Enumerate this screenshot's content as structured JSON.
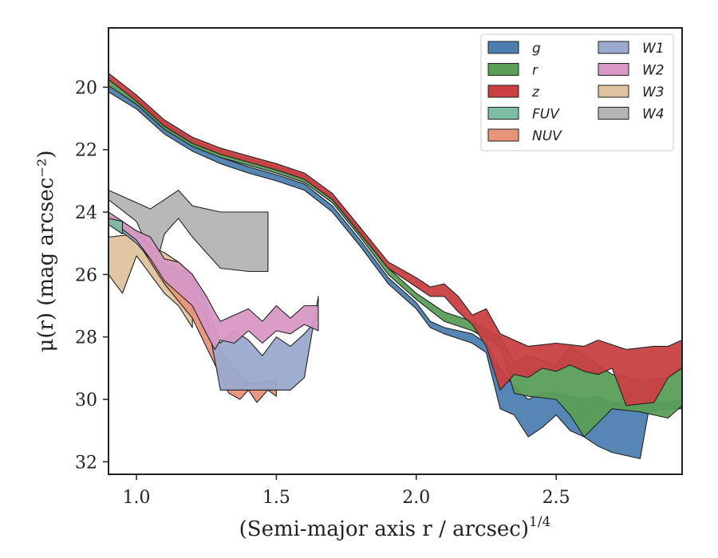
{
  "chart_data": {
    "type": "area",
    "xlabel": "(Semi-major axis r / arcsec)",
    "xlabel_superscript": "1/4",
    "ylabel": "μ(r) (mag arcsec⁻²)",
    "xlim": [
      0.9,
      2.95
    ],
    "ylim": [
      32.4,
      18.1
    ],
    "y_inverted": true,
    "x_ticks": [
      "1.0",
      "1.5",
      "2.0",
      "2.5"
    ],
    "x_tick_values": [
      1.0,
      1.5,
      2.0,
      2.5
    ],
    "y_ticks": [
      "20",
      "22",
      "24",
      "26",
      "28",
      "30",
      "32"
    ],
    "y_tick_values": [
      20,
      22,
      24,
      26,
      28,
      30,
      32
    ],
    "grid": false,
    "legend_position": "top-right",
    "series": [
      {
        "name": "g",
        "color": "#4c7fb0",
        "upper": [
          [
            0.9,
            19.95
          ],
          [
            1.0,
            20.5
          ],
          [
            1.1,
            21.3
          ],
          [
            1.2,
            21.85
          ],
          [
            1.3,
            22.25
          ],
          [
            1.4,
            22.55
          ],
          [
            1.5,
            22.8
          ],
          [
            1.6,
            23.1
          ],
          [
            1.7,
            23.8
          ],
          [
            1.8,
            24.9
          ],
          [
            1.9,
            26.1
          ],
          [
            2.0,
            26.9
          ],
          [
            2.05,
            27.5
          ],
          [
            2.1,
            27.7
          ],
          [
            2.2,
            27.9
          ],
          [
            2.25,
            28.2
          ],
          [
            2.3,
            29.0
          ],
          [
            2.35,
            29.6
          ],
          [
            2.4,
            30.0
          ],
          [
            2.45,
            29.8
          ],
          [
            2.5,
            29.8
          ],
          [
            2.55,
            29.9
          ],
          [
            2.6,
            30.0
          ],
          [
            2.65,
            29.9
          ],
          [
            2.7,
            30.1
          ],
          [
            2.8,
            30.2
          ],
          [
            2.9,
            30.1
          ],
          [
            2.95,
            30.0
          ]
        ],
        "lower": [
          [
            0.9,
            20.15
          ],
          [
            1.0,
            20.7
          ],
          [
            1.1,
            21.5
          ],
          [
            1.2,
            22.05
          ],
          [
            1.3,
            22.45
          ],
          [
            1.4,
            22.75
          ],
          [
            1.5,
            23.0
          ],
          [
            1.6,
            23.3
          ],
          [
            1.7,
            24.0
          ],
          [
            1.8,
            25.1
          ],
          [
            1.9,
            26.3
          ],
          [
            2.0,
            27.1
          ],
          [
            2.05,
            27.7
          ],
          [
            2.1,
            27.9
          ],
          [
            2.2,
            28.2
          ],
          [
            2.25,
            28.5
          ],
          [
            2.3,
            30.3
          ],
          [
            2.35,
            30.5
          ],
          [
            2.4,
            31.2
          ],
          [
            2.45,
            30.9
          ],
          [
            2.5,
            30.5
          ],
          [
            2.55,
            31.0
          ],
          [
            2.6,
            31.2
          ],
          [
            2.65,
            31.5
          ],
          [
            2.7,
            31.7
          ],
          [
            2.8,
            31.9
          ],
          [
            2.83,
            30.4
          ],
          [
            2.9,
            30.3
          ],
          [
            2.95,
            30.3
          ]
        ]
      },
      {
        "name": "r",
        "color": "#5a9e58",
        "upper": [
          [
            0.9,
            19.75
          ],
          [
            1.0,
            20.35
          ],
          [
            1.1,
            21.15
          ],
          [
            1.2,
            21.7
          ],
          [
            1.3,
            22.05
          ],
          [
            1.4,
            22.3
          ],
          [
            1.5,
            22.55
          ],
          [
            1.6,
            22.85
          ],
          [
            1.7,
            23.5
          ],
          [
            1.8,
            24.6
          ],
          [
            1.9,
            25.8
          ],
          [
            2.0,
            26.6
          ],
          [
            2.1,
            27.2
          ],
          [
            2.2,
            27.5
          ],
          [
            2.3,
            28.0
          ],
          [
            2.35,
            28.8
          ],
          [
            2.4,
            28.6
          ],
          [
            2.5,
            28.9
          ],
          [
            2.55,
            28.3
          ],
          [
            2.6,
            28.6
          ],
          [
            2.7,
            29.2
          ],
          [
            2.8,
            29.4
          ],
          [
            2.9,
            29.3
          ],
          [
            2.95,
            28.9
          ]
        ],
        "lower": [
          [
            0.9,
            19.95
          ],
          [
            1.0,
            20.55
          ],
          [
            1.1,
            21.35
          ],
          [
            1.2,
            21.9
          ],
          [
            1.3,
            22.25
          ],
          [
            1.4,
            22.5
          ],
          [
            1.5,
            22.75
          ],
          [
            1.6,
            23.05
          ],
          [
            1.7,
            23.7
          ],
          [
            1.8,
            24.8
          ],
          [
            1.9,
            26.0
          ],
          [
            2.0,
            26.8
          ],
          [
            2.1,
            27.5
          ],
          [
            2.2,
            27.8
          ],
          [
            2.3,
            28.3
          ],
          [
            2.35,
            29.8
          ],
          [
            2.4,
            29.9
          ],
          [
            2.5,
            30.0
          ],
          [
            2.55,
            30.5
          ],
          [
            2.6,
            31.2
          ],
          [
            2.7,
            30.3
          ],
          [
            2.8,
            30.4
          ],
          [
            2.9,
            30.6
          ],
          [
            2.95,
            30.2
          ]
        ]
      },
      {
        "name": "z",
        "color": "#c84042",
        "upper": [
          [
            0.9,
            19.55
          ],
          [
            1.0,
            20.25
          ],
          [
            1.1,
            21.05
          ],
          [
            1.2,
            21.6
          ],
          [
            1.3,
            21.95
          ],
          [
            1.4,
            22.2
          ],
          [
            1.5,
            22.45
          ],
          [
            1.6,
            22.75
          ],
          [
            1.7,
            23.4
          ],
          [
            1.8,
            24.5
          ],
          [
            1.9,
            25.6
          ],
          [
            2.0,
            26.1
          ],
          [
            2.05,
            26.4
          ],
          [
            2.1,
            26.3
          ],
          [
            2.15,
            26.7
          ],
          [
            2.2,
            27.3
          ],
          [
            2.25,
            27.1
          ],
          [
            2.3,
            27.9
          ],
          [
            2.35,
            28.1
          ],
          [
            2.4,
            28.3
          ],
          [
            2.5,
            28.2
          ],
          [
            2.6,
            28.3
          ],
          [
            2.65,
            28.1
          ],
          [
            2.75,
            28.4
          ],
          [
            2.85,
            28.3
          ],
          [
            2.9,
            28.3
          ],
          [
            2.95,
            28.1
          ]
        ],
        "lower": [
          [
            0.9,
            19.75
          ],
          [
            1.0,
            20.45
          ],
          [
            1.1,
            21.25
          ],
          [
            1.2,
            21.8
          ],
          [
            1.3,
            22.15
          ],
          [
            1.4,
            22.4
          ],
          [
            1.5,
            22.65
          ],
          [
            1.6,
            22.95
          ],
          [
            1.7,
            23.6
          ],
          [
            1.8,
            24.7
          ],
          [
            1.9,
            25.8
          ],
          [
            2.0,
            26.4
          ],
          [
            2.05,
            26.7
          ],
          [
            2.1,
            26.7
          ],
          [
            2.15,
            27.2
          ],
          [
            2.2,
            27.6
          ],
          [
            2.25,
            28.3
          ],
          [
            2.3,
            29.7
          ],
          [
            2.35,
            29.2
          ],
          [
            2.4,
            29.3
          ],
          [
            2.45,
            29.0
          ],
          [
            2.5,
            29.1
          ],
          [
            2.55,
            28.9
          ],
          [
            2.6,
            29.1
          ],
          [
            2.65,
            29.2
          ],
          [
            2.7,
            29.0
          ],
          [
            2.75,
            30.2
          ],
          [
            2.85,
            30.1
          ],
          [
            2.9,
            29.3
          ],
          [
            2.95,
            29.0
          ]
        ]
      },
      {
        "name": "FUV",
        "color": "#7fbca4",
        "upper": [
          [
            0.9,
            24.2
          ],
          [
            0.95,
            24.3
          ]
        ],
        "lower": [
          [
            0.9,
            24.4
          ],
          [
            0.95,
            24.7
          ]
        ]
      },
      {
        "name": "NUV",
        "color": "#e8937a",
        "upper": [
          [
            0.9,
            24.1
          ],
          [
            1.0,
            24.6
          ],
          [
            1.1,
            25.9
          ],
          [
            1.2,
            26.4
          ],
          [
            1.3,
            28.5
          ],
          [
            1.4,
            29.5
          ],
          [
            1.5,
            29.4
          ]
        ],
        "lower": [
          [
            0.9,
            24.3
          ],
          [
            1.0,
            24.9
          ],
          [
            1.1,
            26.3
          ],
          [
            1.2,
            27.4
          ],
          [
            1.33,
            29.8
          ],
          [
            1.37,
            30.0
          ],
          [
            1.4,
            29.7
          ],
          [
            1.43,
            30.1
          ],
          [
            1.47,
            29.7
          ],
          [
            1.5,
            29.9
          ]
        ]
      },
      {
        "name": "W1",
        "color": "#9aa9cd",
        "upper": [
          [
            0.9,
            24.1
          ],
          [
            1.0,
            24.7
          ],
          [
            1.1,
            25.7
          ],
          [
            1.2,
            26.0
          ],
          [
            1.25,
            27.0
          ],
          [
            1.3,
            28.2
          ],
          [
            1.35,
            27.8
          ],
          [
            1.4,
            28.1
          ],
          [
            1.45,
            28.6
          ],
          [
            1.5,
            28.0
          ],
          [
            1.55,
            28.3
          ],
          [
            1.6,
            27.9
          ],
          [
            1.65,
            27.4
          ]
        ],
        "lower": [
          [
            0.9,
            24.3
          ],
          [
            1.0,
            25.0
          ],
          [
            1.1,
            26.0
          ],
          [
            1.2,
            26.6
          ],
          [
            1.25,
            27.3
          ],
          [
            1.3,
            29.7
          ],
          [
            1.4,
            29.7
          ],
          [
            1.5,
            29.7
          ],
          [
            1.55,
            29.7
          ],
          [
            1.6,
            29.3
          ],
          [
            1.65,
            26.7
          ]
        ]
      },
      {
        "name": "W2",
        "color": "#d898c4",
        "upper": [
          [
            0.9,
            24.0
          ],
          [
            1.0,
            24.6
          ],
          [
            1.05,
            24.8
          ],
          [
            1.1,
            25.5
          ],
          [
            1.15,
            25.6
          ],
          [
            1.2,
            26.0
          ],
          [
            1.25,
            26.7
          ],
          [
            1.28,
            27.2
          ],
          [
            1.3,
            27.5
          ],
          [
            1.35,
            27.3
          ],
          [
            1.4,
            27.1
          ],
          [
            1.45,
            27.5
          ],
          [
            1.5,
            27.0
          ],
          [
            1.55,
            27.4
          ],
          [
            1.6,
            27.0
          ],
          [
            1.65,
            27.0
          ]
        ],
        "lower": [
          [
            0.9,
            24.2
          ],
          [
            1.0,
            24.9
          ],
          [
            1.05,
            25.5
          ],
          [
            1.1,
            26.2
          ],
          [
            1.15,
            26.6
          ],
          [
            1.2,
            27.0
          ],
          [
            1.25,
            27.9
          ],
          [
            1.28,
            28.4
          ],
          [
            1.3,
            28.1
          ],
          [
            1.35,
            28.2
          ],
          [
            1.4,
            27.8
          ],
          [
            1.45,
            28.2
          ],
          [
            1.5,
            27.8
          ],
          [
            1.55,
            27.9
          ],
          [
            1.6,
            27.6
          ],
          [
            1.65,
            27.8
          ]
        ]
      },
      {
        "name": "W3",
        "color": "#dfc39f",
        "upper": [
          [
            0.9,
            24.8
          ],
          [
            1.0,
            24.7
          ],
          [
            1.05,
            25.1
          ],
          [
            1.1,
            25.3
          ],
          [
            1.15,
            25.6
          ],
          [
            1.2,
            26.0
          ]
        ],
        "lower": [
          [
            0.9,
            26.0
          ],
          [
            0.95,
            26.6
          ],
          [
            1.0,
            25.4
          ],
          [
            1.05,
            26.0
          ],
          [
            1.1,
            26.6
          ],
          [
            1.15,
            27.0
          ],
          [
            1.2,
            27.7
          ]
        ]
      },
      {
        "name": "W4",
        "color": "#b4b4b4",
        "upper": [
          [
            0.9,
            23.3
          ],
          [
            1.0,
            23.7
          ],
          [
            1.05,
            23.9
          ],
          [
            1.1,
            23.6
          ],
          [
            1.15,
            23.3
          ],
          [
            1.2,
            23.8
          ],
          [
            1.3,
            24.0
          ],
          [
            1.4,
            24.0
          ],
          [
            1.47,
            24.0
          ]
        ],
        "lower": [
          [
            0.9,
            23.6
          ],
          [
            1.0,
            24.3
          ],
          [
            1.07,
            25.7
          ],
          [
            1.1,
            24.7
          ],
          [
            1.15,
            24.2
          ],
          [
            1.2,
            24.8
          ],
          [
            1.3,
            25.8
          ],
          [
            1.4,
            25.9
          ],
          [
            1.47,
            25.9
          ]
        ]
      }
    ]
  }
}
